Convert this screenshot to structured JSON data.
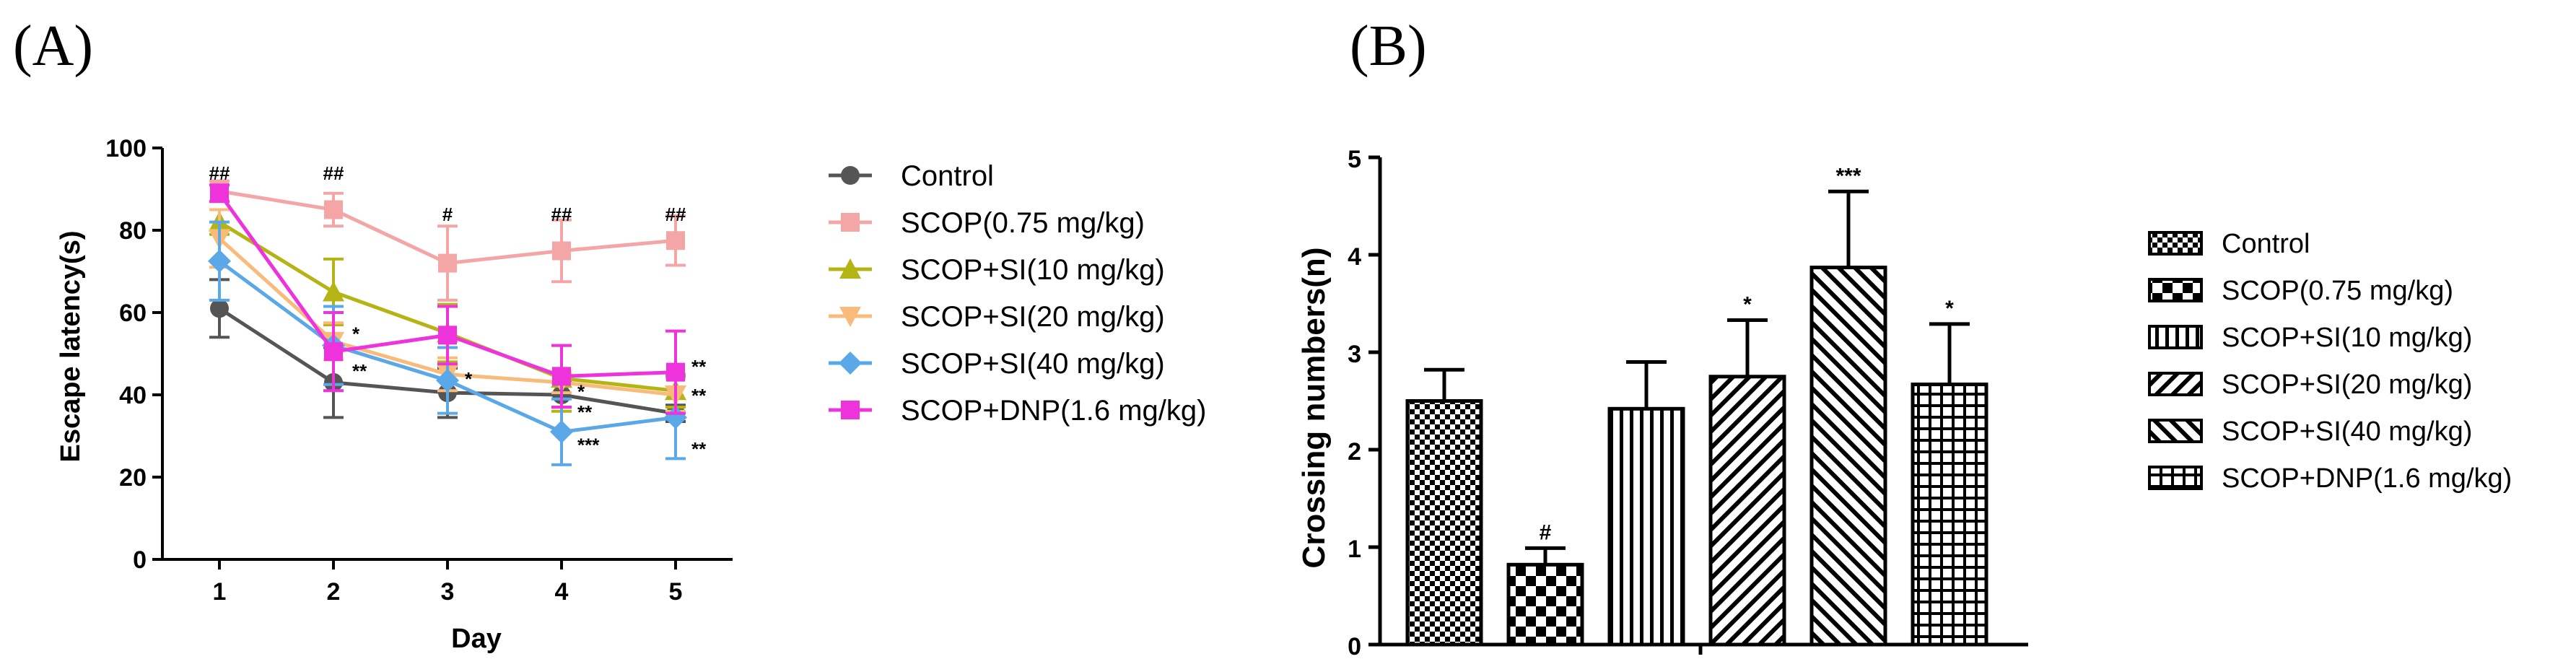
{
  "panels": {
    "a": "(A)",
    "b": "(B)"
  },
  "chart_data": [
    {
      "type": "line",
      "title": "",
      "xlabel": "Day",
      "ylabel": "Escape latency(s)",
      "x": [
        1,
        2,
        3,
        4,
        5
      ],
      "x_ticks": [
        "1",
        "2",
        "3",
        "4",
        "5"
      ],
      "y_ticks": [
        "0",
        "20",
        "40",
        "60",
        "80",
        "100"
      ],
      "xlim": [
        0.5,
        5.5
      ],
      "ylim": [
        0,
        100
      ],
      "legend_position": "right",
      "series": [
        {
          "name": "Control",
          "color": "#555555",
          "marker": "circle",
          "values": [
            61,
            43,
            40.5,
            40,
            35.5
          ],
          "errors": [
            7,
            8.5,
            6,
            3,
            2
          ]
        },
        {
          "name": "SCOP(0.75 mg/kg)",
          "color": "#f4a6a6",
          "marker": "square",
          "values": [
            89.5,
            85,
            72,
            75,
            77.5
          ],
          "errors": [
            2.5,
            4,
            9,
            7.5,
            6
          ]
        },
        {
          "name": "SCOP+SI(10 mg/kg)",
          "color": "#b4b414",
          "marker": "triangle-up",
          "values": [
            82,
            65,
            55,
            44,
            41
          ],
          "errors": [
            3,
            8,
            7,
            8,
            4
          ]
        },
        {
          "name": "SCOP+SI(20 mg/kg)",
          "color": "#f9bb7a",
          "marker": "triangle-down",
          "values": [
            78,
            53,
            45,
            43,
            40
          ],
          "errors": [
            7,
            4.5,
            4,
            2.5,
            4
          ]
        },
        {
          "name": "SCOP+SI(40 mg/kg)",
          "color": "#5aa8e8",
          "marker": "diamond",
          "values": [
            72.5,
            52,
            43.5,
            31,
            34.5
          ],
          "errors": [
            9.5,
            9.5,
            8,
            8,
            10
          ]
        },
        {
          "name": "SCOP+DNP(1.6 mg/kg)",
          "color": "#ee33dd",
          "marker": "square",
          "values": [
            89,
            50.5,
            54.5,
            44.5,
            45.5
          ],
          "errors": [
            2,
            9.5,
            7,
            7.5,
            10
          ]
        }
      ],
      "annotations": [
        {
          "text": "##",
          "x": 1,
          "y": 94
        },
        {
          "text": "##",
          "x": 2,
          "y": 94
        },
        {
          "text": "#",
          "x": 3,
          "y": 84
        },
        {
          "text": "##",
          "x": 4,
          "y": 84
        },
        {
          "text": "##",
          "x": 5,
          "y": 84
        },
        {
          "text": "*",
          "x": 2,
          "y": 55
        },
        {
          "text": "**",
          "x": 2,
          "y": 46
        },
        {
          "text": "*",
          "x": 3,
          "y": 44
        },
        {
          "text": "*",
          "x": 4,
          "y": 41
        },
        {
          "text": "**",
          "x": 4,
          "y": 36
        },
        {
          "text": "***",
          "x": 4,
          "y": 28
        },
        {
          "text": "**",
          "x": 5,
          "y": 47
        },
        {
          "text": "**",
          "x": 5,
          "y": 40
        },
        {
          "text": "**",
          "x": 5,
          "y": 27
        }
      ]
    },
    {
      "type": "bar",
      "title": "",
      "xlabel": "",
      "ylabel": "Crossing numbers(n)",
      "categories": [
        "Control",
        "SCOP(0.75 mg/kg)",
        "SCOP+SI(10 mg/kg)",
        "SCOP+SI(20 mg/kg)",
        "SCOP+SI(40 mg/kg)",
        "SCOP+DNP(1.6 mg/kg)"
      ],
      "patterns": [
        "checker",
        "big-checker",
        "vertical",
        "diagonal-right",
        "diagonal-left",
        "grid"
      ],
      "values": [
        2.5,
        0.82,
        2.42,
        2.75,
        3.87,
        2.67
      ],
      "errors": [
        0.32,
        0.17,
        0.48,
        0.58,
        0.78,
        0.62
      ],
      "significance": [
        "",
        "#",
        "",
        "*",
        "***",
        "*"
      ],
      "y_ticks": [
        "0",
        "1",
        "2",
        "3",
        "4",
        "5"
      ],
      "ylim": [
        0,
        5
      ],
      "legend_position": "right"
    }
  ]
}
